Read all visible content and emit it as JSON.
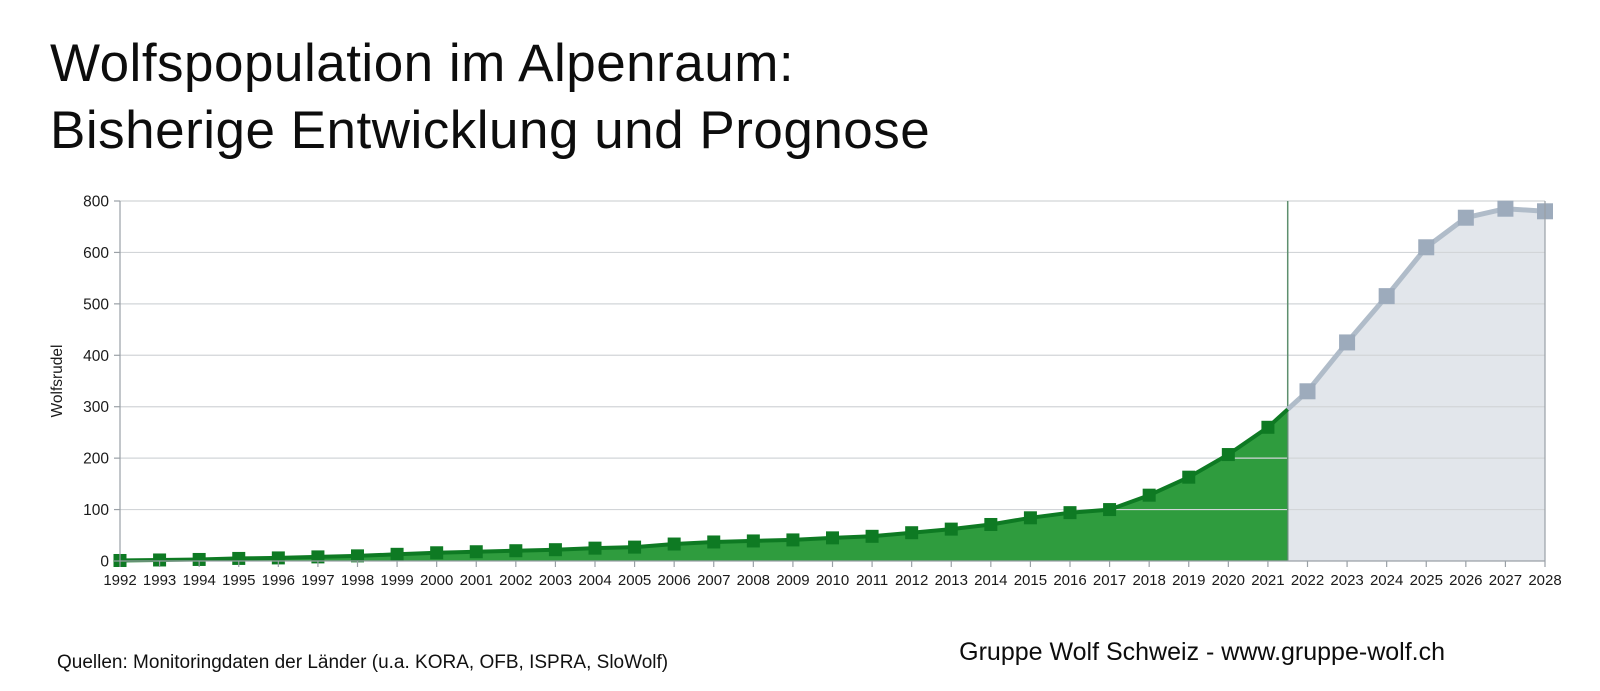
{
  "title": {
    "line1": "Wolfspopulation im Alpenraum:",
    "line2": "Bisherige Entwicklung und Prognose"
  },
  "footer": {
    "sources": "Quellen: Monitoringdaten der Länder (u.a. KORA, OFB, ISPRA, SloWolf)",
    "attribution": "Gruppe Wolf Schweiz - www.gruppe-wolf.ch"
  },
  "chart_data": {
    "type": "area",
    "title": "Wolfspopulation im Alpenraum: Bisherige Entwicklung und Prognose",
    "xlabel": "",
    "ylabel": "Wolfsrudel",
    "grid": true,
    "legend": false,
    "y_ticks": [
      0,
      100,
      200,
      300,
      400,
      500,
      600,
      800
    ],
    "ylim_display_note": "y tick labels are evenly spaced exactly as shown (no 700 label)",
    "x_range": [
      1992,
      2028
    ],
    "x_ticks": [
      1992,
      1993,
      1994,
      1995,
      1996,
      1997,
      1998,
      1999,
      2000,
      2001,
      2002,
      2003,
      2004,
      2005,
      2006,
      2007,
      2008,
      2009,
      2010,
      2011,
      2012,
      2013,
      2014,
      2015,
      2016,
      2017,
      2018,
      2019,
      2020,
      2021,
      2022,
      2023,
      2024,
      2025,
      2026,
      2027,
      2028
    ],
    "divider": {
      "year": 2021.5
    },
    "series": [
      {
        "name": "Bisherige Entwicklung",
        "role": "historical",
        "x": [
          1992,
          1993,
          1994,
          1995,
          1996,
          1997,
          1998,
          1999,
          2000,
          2001,
          2002,
          2003,
          2004,
          2005,
          2006,
          2007,
          2008,
          2009,
          2010,
          2011,
          2012,
          2013,
          2014,
          2015,
          2016,
          2017,
          2018,
          2019,
          2020,
          2021
        ],
        "values": [
          1,
          2,
          3,
          5,
          6,
          8,
          10,
          13,
          16,
          18,
          20,
          22,
          25,
          27,
          33,
          37,
          39,
          41,
          45,
          48,
          55,
          62,
          71,
          84,
          94,
          100,
          128,
          163,
          207,
          260
        ],
        "color_fill": "#2f9c3e",
        "color_line": "#0e7a23",
        "color_marker": "#0e7a23"
      },
      {
        "name": "Prognose",
        "role": "forecast",
        "x": [
          2022,
          2023,
          2024,
          2025,
          2026,
          2027,
          2028
        ],
        "values": [
          330,
          425,
          515,
          620,
          735,
          770,
          760
        ],
        "color_fill": "#e2e6eb",
        "color_line": "#b0bcc9",
        "color_marker": "#9dabbc"
      }
    ],
    "colors": {
      "grid": "#d2d5d8",
      "axis": "#9aa0a6",
      "divider": "#5d8f6e",
      "text": "#1a1a1a"
    }
  }
}
